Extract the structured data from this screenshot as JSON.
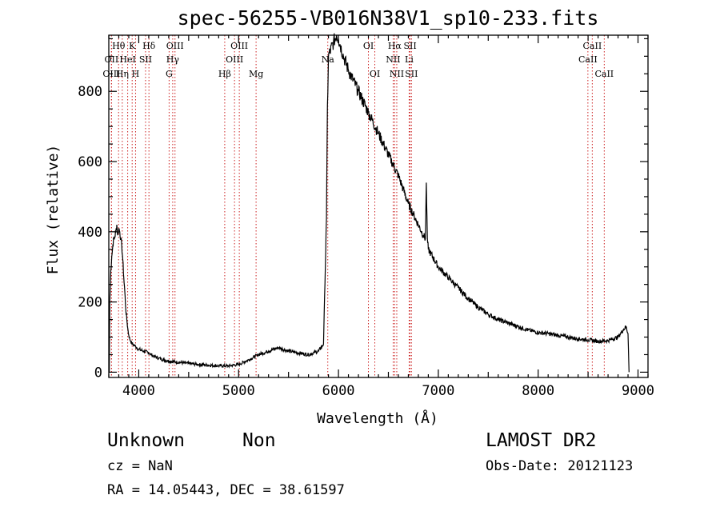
{
  "chart_data": {
    "type": "line",
    "title": "spec-56255-VB016N38V1_sp10-233.fits",
    "xlabel": "Wavelength (Å)",
    "ylabel": "Flux (relative)",
    "xlim": [
      3700,
      9100
    ],
    "ylim": [
      -15,
      960
    ],
    "x_ticks": [
      4000,
      5000,
      6000,
      7000,
      8000,
      9000
    ],
    "y_ticks": [
      0,
      200,
      400,
      600,
      800
    ],
    "grid": false,
    "line_color": "#000000",
    "marker_color": "#cc2222",
    "series": [
      {
        "x": [
          3705,
          3710,
          3720,
          3730,
          3740,
          3750,
          3760,
          3770,
          3780,
          3790,
          3800,
          3810,
          3820,
          3830,
          3840,
          3850,
          3860,
          3870,
          3880,
          3890,
          3900,
          3910,
          3920,
          3930,
          3940,
          3950,
          3960,
          3970,
          3980,
          4000,
          4050,
          4100,
          4150,
          4200,
          4250,
          4300,
          4400,
          4500,
          4600,
          4700,
          4800,
          4900,
          5000,
          5100,
          5200,
          5300,
          5400,
          5500,
          5600,
          5700,
          5800,
          5850,
          5880,
          5890,
          5900,
          5950,
          5980,
          6000,
          6050,
          6100,
          6200,
          6300,
          6400,
          6500,
          6550,
          6600,
          6650,
          6700,
          6750,
          6800,
          6850,
          6870,
          6880,
          6890,
          6900,
          7000,
          7100,
          7200,
          7300,
          7400,
          7500,
          7600,
          7700,
          7800,
          7900,
          8000,
          8100,
          8200,
          8300,
          8400,
          8500,
          8600,
          8700,
          8800,
          8850,
          8880,
          8900,
          8910
        ],
        "y": [
          0,
          200,
          290,
          330,
          360,
          380,
          385,
          400,
          420,
          390,
          410,
          400,
          380,
          360,
          320,
          270,
          230,
          180,
          150,
          125,
          105,
          95,
          88,
          82,
          80,
          78,
          75,
          72,
          70,
          65,
          60,
          55,
          45,
          40,
          35,
          32,
          28,
          25,
          22,
          20,
          18,
          18,
          22,
          35,
          50,
          60,
          70,
          60,
          55,
          50,
          60,
          80,
          440,
          760,
          900,
          940,
          960,
          950,
          900,
          860,
          800,
          740,
          680,
          620,
          590,
          560,
          520,
          480,
          450,
          420,
          390,
          380,
          540,
          380,
          350,
          300,
          270,
          240,
          210,
          185,
          165,
          150,
          140,
          130,
          120,
          113,
          110,
          105,
          100,
          95,
          92,
          88,
          90,
          100,
          120,
          130,
          110,
          0
        ]
      }
    ],
    "lines": [
      {
        "label": "Hθ",
        "wl": 3798,
        "row": 1
      },
      {
        "label": "OII",
        "wl": 3727,
        "row": 2
      },
      {
        "label": "OIII",
        "wl": 3727,
        "row": 3
      },
      {
        "label": "Hη",
        "wl": 3835,
        "row": 3
      },
      {
        "label": "HeI",
        "wl": 3889,
        "row": 2
      },
      {
        "label": "K",
        "wl": 3934,
        "row": 1
      },
      {
        "label": "SII",
        "wl": 4068,
        "row": 2
      },
      {
        "label": "H",
        "wl": 3968,
        "row": 3
      },
      {
        "label": "Hδ",
        "wl": 4102,
        "row": 1
      },
      {
        "label": "OIII",
        "wl": 4363,
        "row": 1
      },
      {
        "label": "Hγ",
        "wl": 4340,
        "row": 2
      },
      {
        "label": "G",
        "wl": 4304,
        "row": 3
      },
      {
        "label": "Hβ",
        "wl": 4861,
        "row": 3
      },
      {
        "label": "OIII",
        "wl": 5007,
        "row": 1
      },
      {
        "label": "OIII",
        "wl": 4959,
        "row": 2
      },
      {
        "label": "Mg",
        "wl": 5175,
        "row": 3
      },
      {
        "label": "Na",
        "wl": 5893,
        "row": 2
      },
      {
        "label": "OI",
        "wl": 6300,
        "row": 1
      },
      {
        "label": "OI",
        "wl": 6364,
        "row": 3
      },
      {
        "label": "Hα",
        "wl": 6563,
        "row": 1
      },
      {
        "label": "NII",
        "wl": 6548,
        "row": 2
      },
      {
        "label": "NII",
        "wl": 6584,
        "row": 3
      },
      {
        "label": "SII",
        "wl": 6717,
        "row": 1
      },
      {
        "label": "Li",
        "wl": 6708,
        "row": 2
      },
      {
        "label": "SII",
        "wl": 6731,
        "row": 3
      },
      {
        "label": "CaII",
        "wl": 8542,
        "row": 1
      },
      {
        "label": "CaII",
        "wl": 8498,
        "row": 2
      },
      {
        "label": "CaII",
        "wl": 8662,
        "row": 3
      }
    ]
  },
  "info": {
    "class": "Unknown",
    "subclass": "Non",
    "survey": "LAMOST DR2",
    "cz": "cz = NaN",
    "obs_date": "Obs-Date: 20121123",
    "coords": "RA =  14.05443, DEC =  38.61597"
  }
}
